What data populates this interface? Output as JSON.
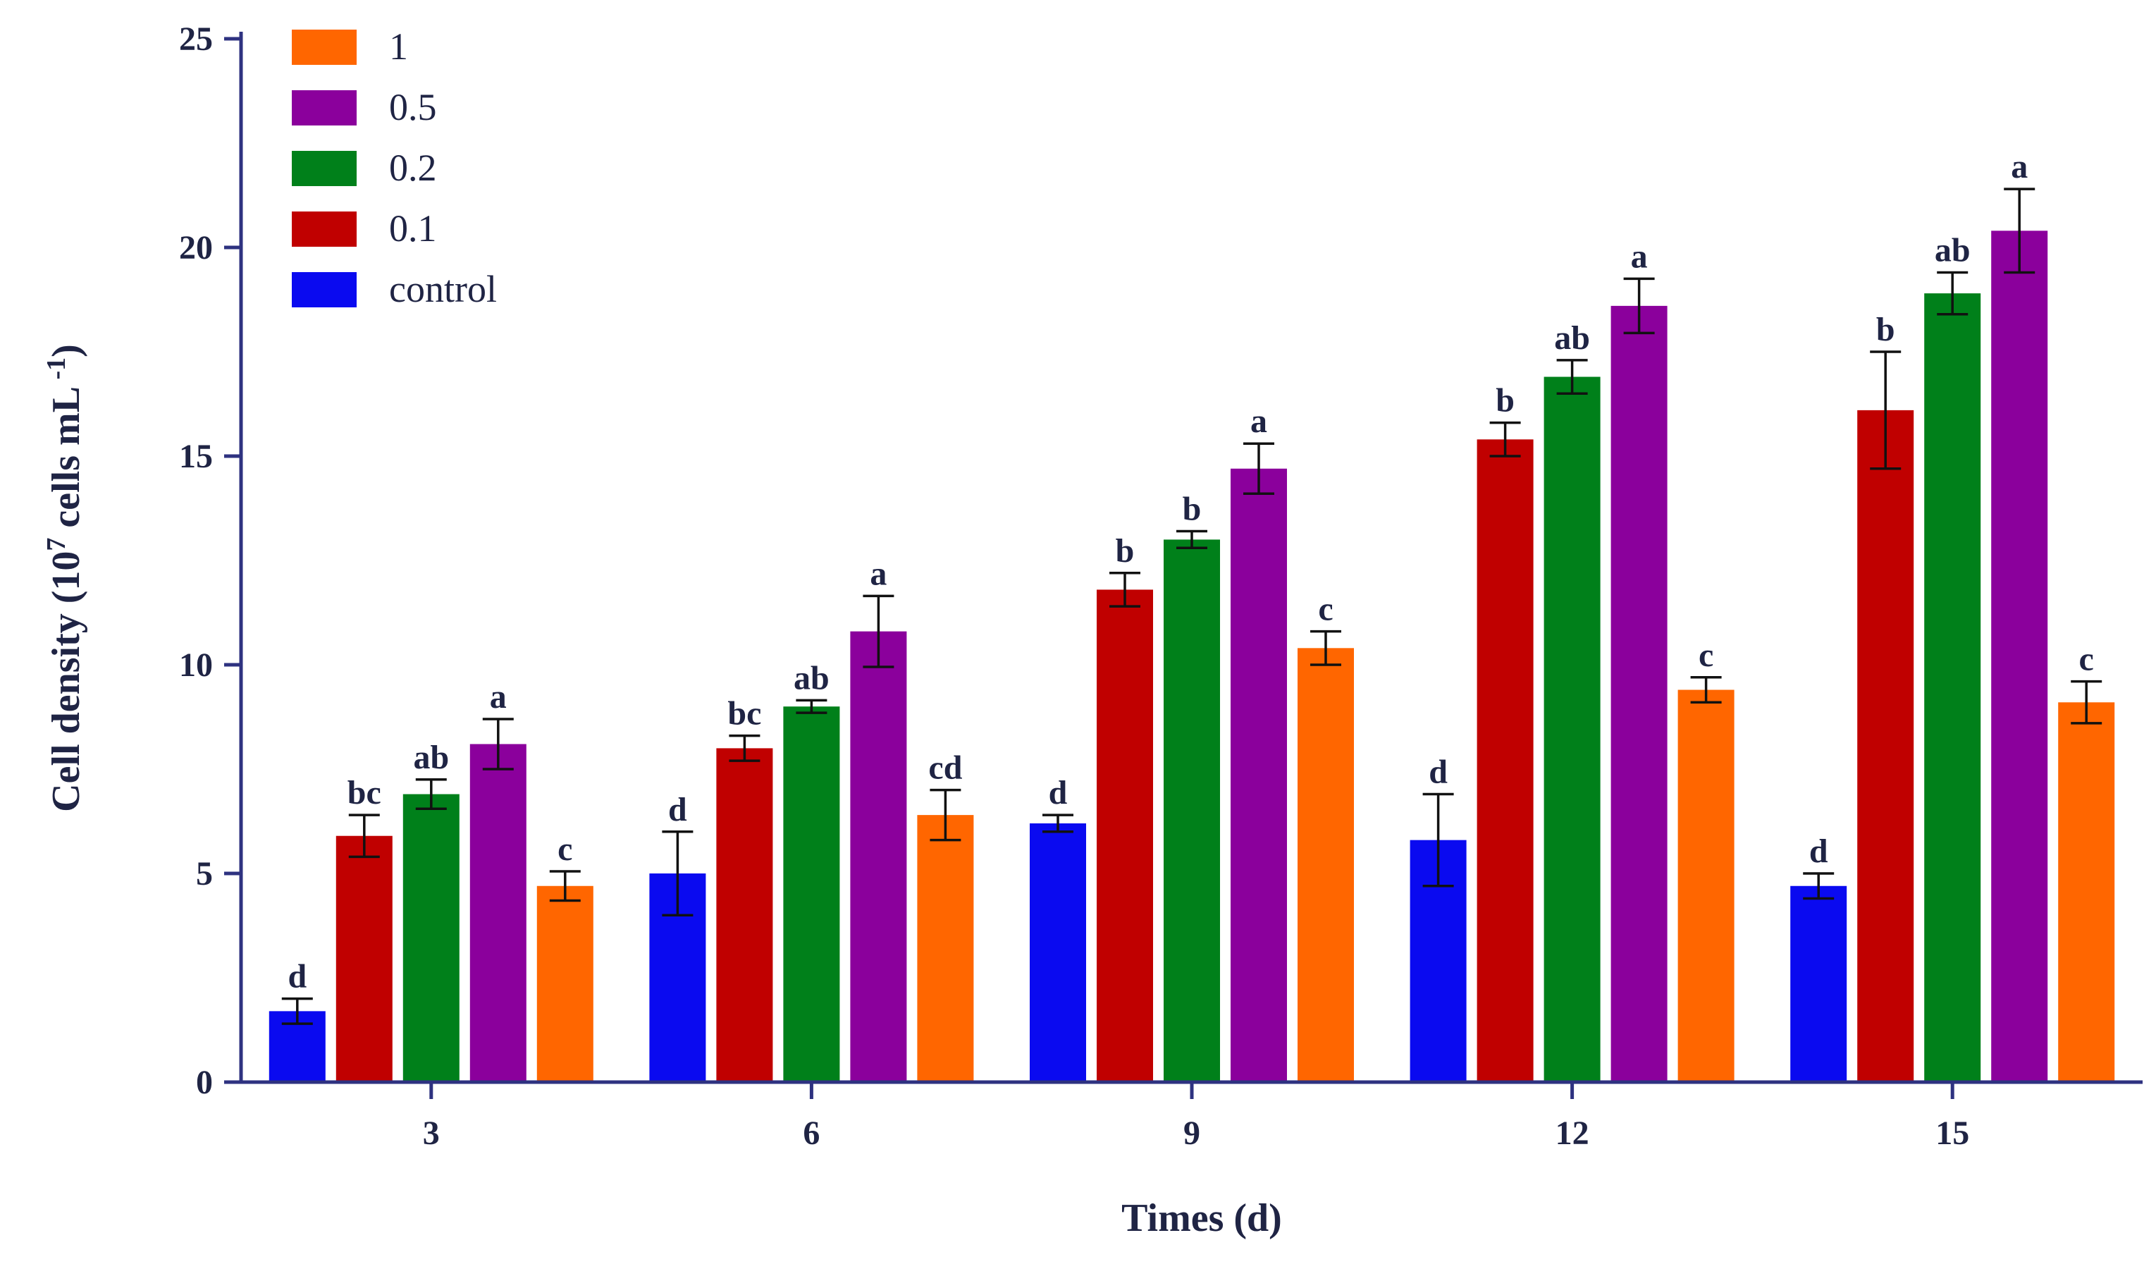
{
  "chart_data": {
    "type": "bar",
    "title": "",
    "xlabel": "Times (d)",
    "ylabel": "Cell density (10^7 cells mL^-1)",
    "ylabel_parts": {
      "pre": "Cell density (10",
      "sup1": "7",
      "mid": "cells mL",
      "sup2": "-1",
      "post": ")"
    },
    "ylim": [
      0,
      25
    ],
    "yticks": [
      "0",
      "5",
      "10",
      "15",
      "20",
      "25"
    ],
    "categories": [
      "3",
      "6",
      "9",
      "12",
      "15"
    ],
    "legend_position": "top-left",
    "legend_order": [
      "1",
      "0.5",
      "0.2",
      "0.1",
      "control"
    ],
    "series": [
      {
        "name": "control",
        "color": "#0a0af0",
        "values": [
          1.7,
          5.0,
          6.2,
          5.8,
          4.7
        ],
        "errors": [
          0.3,
          1.0,
          0.2,
          1.1,
          0.3
        ],
        "letters": [
          "d",
          "d",
          "d",
          "d",
          "d"
        ]
      },
      {
        "name": "0.1",
        "color": "#c00000",
        "values": [
          5.9,
          8.0,
          11.8,
          15.4,
          16.1
        ],
        "errors": [
          0.5,
          0.3,
          0.4,
          0.4,
          1.4
        ],
        "letters": [
          "bc",
          "bc",
          "b",
          "b",
          "b"
        ]
      },
      {
        "name": "0.2",
        "color": "#00801a",
        "values": [
          6.9,
          9.0,
          13.0,
          16.9,
          18.9
        ],
        "errors": [
          0.35,
          0.15,
          0.2,
          0.4,
          0.5
        ],
        "letters": [
          "ab",
          "ab",
          "b",
          "ab",
          "ab"
        ]
      },
      {
        "name": "0.5",
        "color": "#8b009c",
        "values": [
          8.1,
          10.8,
          14.7,
          18.6,
          20.4
        ],
        "errors": [
          0.6,
          0.85,
          0.6,
          0.65,
          1.0
        ],
        "letters": [
          "a",
          "a",
          "a",
          "a",
          "a"
        ]
      },
      {
        "name": "1",
        "color": "#ff6600",
        "values": [
          4.7,
          6.4,
          10.4,
          9.4,
          9.1
        ],
        "errors": [
          0.35,
          0.6,
          0.4,
          0.3,
          0.5
        ],
        "letters": [
          "c",
          "cd",
          "c",
          "c",
          "c"
        ]
      }
    ]
  }
}
